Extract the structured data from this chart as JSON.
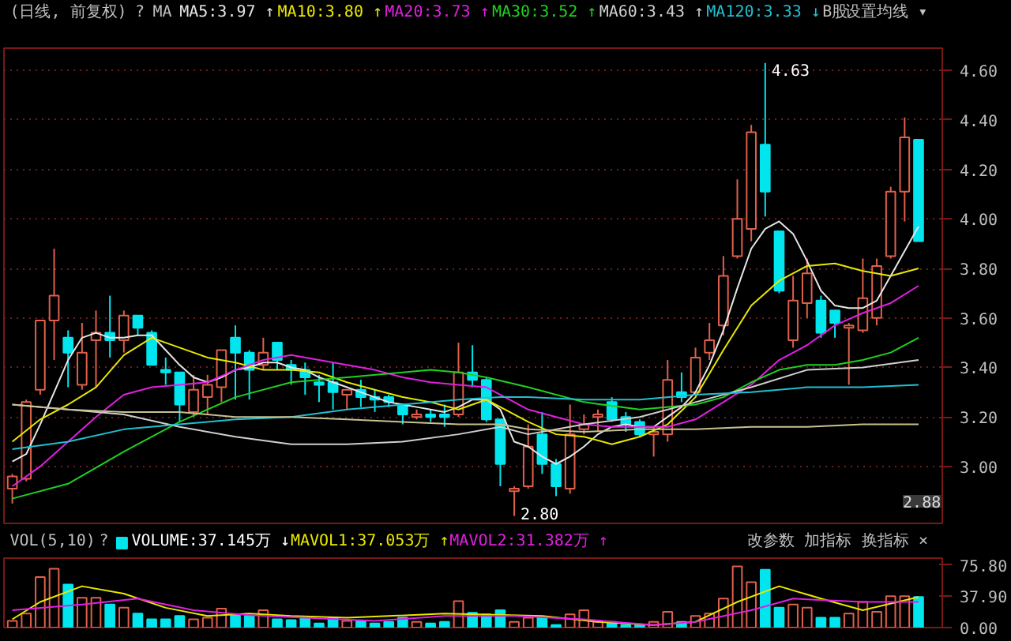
{
  "chart_data": [
    {
      "type": "candlestick",
      "subtitle": "(日线, 前复权)",
      "legend": "top",
      "grid": "y",
      "tick_labels": "y",
      "categories": [
        null,
        null,
        null,
        null,
        null,
        null,
        null,
        null,
        null,
        null,
        null,
        null,
        null,
        null,
        null,
        null,
        null,
        null,
        null,
        null,
        null,
        null,
        null,
        null,
        null,
        null,
        null,
        null,
        null,
        null,
        null,
        null,
        null,
        null,
        null,
        null,
        null,
        null,
        null,
        null,
        null,
        null,
        null,
        null,
        null,
        null,
        null,
        null,
        null,
        null,
        null,
        null,
        null,
        null,
        null,
        null,
        null,
        null,
        null,
        null,
        null,
        null,
        null,
        null,
        null,
        null
      ],
      "ohlc": [
        [
          2.91,
          2.97,
          2.85,
          2.96
        ],
        [
          2.95,
          3.27,
          2.94,
          3.26
        ],
        [
          3.31,
          3.59,
          3.29,
          3.59
        ],
        [
          3.59,
          3.88,
          3.43,
          3.69
        ],
        [
          3.52,
          3.55,
          3.32,
          3.46
        ],
        [
          3.33,
          3.58,
          3.31,
          3.46
        ],
        [
          3.51,
          3.63,
          3.32,
          3.54
        ],
        [
          3.54,
          3.69,
          3.44,
          3.51
        ],
        [
          3.51,
          3.63,
          3.46,
          3.61
        ],
        [
          3.61,
          3.61,
          3.53,
          3.56
        ],
        [
          3.54,
          3.55,
          3.41,
          3.41
        ],
        [
          3.39,
          3.44,
          3.33,
          3.38
        ],
        [
          3.38,
          3.38,
          3.18,
          3.25
        ],
        [
          3.22,
          3.37,
          3.2,
          3.31
        ],
        [
          3.28,
          3.37,
          3.21,
          3.33
        ],
        [
          3.32,
          3.47,
          3.26,
          3.47
        ],
        [
          3.52,
          3.57,
          3.27,
          3.46
        ],
        [
          3.46,
          3.47,
          3.27,
          3.39
        ],
        [
          3.41,
          3.52,
          3.39,
          3.46
        ],
        [
          3.5,
          3.5,
          3.39,
          3.43
        ],
        [
          3.41,
          3.43,
          3.33,
          3.39
        ],
        [
          3.39,
          3.42,
          3.29,
          3.36
        ],
        [
          3.34,
          3.37,
          3.26,
          3.33
        ],
        [
          3.34,
          3.42,
          3.23,
          3.3
        ],
        [
          3.29,
          3.31,
          3.23,
          3.31
        ],
        [
          3.31,
          3.35,
          3.24,
          3.28
        ],
        [
          3.28,
          3.31,
          3.22,
          3.27
        ],
        [
          3.28,
          3.29,
          3.24,
          3.26
        ],
        [
          3.25,
          3.25,
          3.17,
          3.21
        ],
        [
          3.2,
          3.23,
          3.19,
          3.21
        ],
        [
          3.21,
          3.23,
          3.18,
          3.2
        ],
        [
          3.21,
          3.25,
          3.16,
          3.2
        ],
        [
          3.21,
          3.5,
          3.2,
          3.38
        ],
        [
          3.38,
          3.49,
          3.32,
          3.35
        ],
        [
          3.35,
          3.36,
          3.18,
          3.19
        ],
        [
          3.19,
          3.19,
          2.92,
          3.01
        ],
        [
          2.9,
          2.92,
          2.8,
          2.91
        ],
        [
          2.92,
          3.17,
          2.91,
          3.08
        ],
        [
          3.13,
          3.22,
          2.97,
          3.01
        ],
        [
          3.01,
          3.03,
          2.88,
          2.92
        ],
        [
          2.91,
          3.25,
          2.89,
          3.13
        ],
        [
          3.15,
          3.21,
          3.13,
          3.17
        ],
        [
          3.2,
          3.23,
          3.14,
          3.21
        ],
        [
          3.26,
          3.28,
          3.18,
          3.19
        ],
        [
          3.2,
          3.22,
          3.14,
          3.17
        ],
        [
          3.18,
          3.19,
          3.12,
          3.13
        ],
        [
          3.13,
          3.16,
          3.04,
          3.14
        ],
        [
          3.13,
          3.43,
          3.1,
          3.35
        ],
        [
          3.3,
          3.38,
          3.26,
          3.28
        ],
        [
          3.3,
          3.48,
          3.29,
          3.44
        ],
        [
          3.46,
          3.58,
          3.43,
          3.51
        ],
        [
          3.57,
          3.85,
          3.53,
          3.77
        ],
        [
          3.85,
          4.16,
          3.84,
          4.0
        ],
        [
          3.96,
          4.38,
          3.91,
          4.35
        ],
        [
          4.3,
          4.63,
          4.01,
          4.11
        ],
        [
          3.95,
          3.95,
          3.7,
          3.71
        ],
        [
          3.51,
          3.77,
          3.48,
          3.67
        ],
        [
          3.66,
          3.84,
          3.6,
          3.78
        ],
        [
          3.67,
          3.69,
          3.52,
          3.54
        ],
        [
          3.63,
          3.63,
          3.52,
          3.58
        ],
        [
          3.56,
          3.58,
          3.33,
          3.57
        ],
        [
          3.55,
          3.84,
          3.54,
          3.68
        ],
        [
          3.6,
          3.84,
          3.57,
          3.81
        ],
        [
          3.85,
          4.13,
          3.84,
          4.11
        ],
        [
          4.11,
          4.41,
          3.99,
          4.33
        ],
        [
          4.32,
          4.32,
          3.91,
          3.91
        ]
      ],
      "ylim": [
        2.77,
        4.69
      ],
      "yticks": [
        {
          "value": 3.0,
          "label": "3.00"
        },
        {
          "value": 3.2,
          "label": "3.20"
        },
        {
          "value": 3.4,
          "label": "3.40"
        },
        {
          "value": 3.6,
          "label": "3.60"
        },
        {
          "value": 3.8,
          "label": "3.80"
        },
        {
          "value": 4.0,
          "label": "4.00"
        },
        {
          "value": 4.2,
          "label": "4.20"
        },
        {
          "value": 4.4,
          "label": "4.40"
        },
        {
          "value": 4.6,
          "label": "4.60"
        }
      ],
      "series": [
        {
          "type": "line",
          "name": "MA5:3.97 ↑",
          "color": "#e6e6e6",
          "values": [
            3.02,
            3.05,
            3.17,
            3.3,
            3.43,
            3.52,
            3.54,
            3.52,
            3.52,
            3.53,
            3.53,
            3.47,
            3.41,
            3.36,
            3.34,
            3.36,
            3.39,
            3.4,
            3.42,
            3.42,
            3.4,
            3.39,
            3.36,
            3.34,
            3.32,
            3.3,
            3.28,
            3.26,
            3.25,
            3.24,
            3.23,
            3.22,
            3.24,
            3.27,
            3.27,
            3.23,
            3.1,
            3.08,
            3.04,
            3.01,
            3.04,
            3.08,
            3.13,
            3.16,
            3.17,
            3.16,
            3.16,
            3.2,
            3.24,
            3.3,
            3.41,
            3.55,
            3.72,
            3.88,
            3.96,
            3.99,
            3.94,
            3.83,
            3.71,
            3.65,
            3.64,
            3.64,
            3.67,
            3.77,
            3.87,
            3.97
          ]
        },
        {
          "type": "line",
          "name": "MA10:3.80 ↑",
          "color": "#e8e800",
          "values": [
            3.1,
            null,
            3.19,
            null,
            3.25,
            null,
            3.32,
            null,
            3.45,
            null,
            3.52,
            null,
            3.48,
            null,
            3.44,
            null,
            3.42,
            null,
            3.39,
            null,
            3.39,
            null,
            3.38,
            null,
            3.34,
            null,
            3.31,
            null,
            3.28,
            null,
            3.26,
            null,
            3.23,
            null,
            3.27,
            null,
            null,
            3.18,
            null,
            3.13,
            null,
            3.12,
            null,
            3.09,
            null,
            3.12,
            null,
            3.17,
            null,
            3.28,
            null,
            3.47,
            null,
            3.65,
            null,
            3.75,
            null,
            3.81,
            null,
            3.82,
            null,
            3.79,
            null,
            3.77,
            null,
            3.8
          ]
        },
        {
          "type": "line",
          "name": "MA20:3.73 ↑",
          "color": "#e020e0",
          "values": [
            2.92,
            null,
            3.0,
            null,
            3.1,
            null,
            3.2,
            null,
            3.29,
            null,
            3.32,
            null,
            3.33,
            null,
            3.34,
            null,
            3.39,
            null,
            3.43,
            null,
            3.45,
            null,
            3.43,
            null,
            3.41,
            null,
            3.39,
            null,
            3.36,
            null,
            3.34,
            null,
            3.33,
            null,
            3.32,
            null,
            null,
            3.23,
            null,
            3.2,
            null,
            3.17,
            null,
            3.16,
            null,
            3.16,
            null,
            3.16,
            null,
            3.19,
            null,
            3.26,
            null,
            3.33,
            null,
            3.43,
            null,
            3.49,
            null,
            3.57,
            null,
            3.62,
            null,
            3.66,
            null,
            3.73
          ]
        },
        {
          "type": "line",
          "name": "MA30:3.52 ↑",
          "color": "#20d020",
          "values": [
            2.87,
            null,
            null,
            null,
            2.93,
            null,
            null,
            null,
            3.06,
            null,
            null,
            null,
            3.18,
            null,
            null,
            null,
            3.28,
            null,
            null,
            null,
            3.34,
            null,
            null,
            null,
            3.36,
            null,
            null,
            null,
            3.38,
            null,
            3.39,
            null,
            3.38,
            null,
            3.36,
            null,
            null,
            3.32,
            null,
            null,
            null,
            3.26,
            null,
            null,
            null,
            3.23,
            null,
            null,
            null,
            3.25,
            null,
            3.28,
            null,
            3.34,
            null,
            3.39,
            null,
            3.41,
            null,
            3.41,
            null,
            3.43,
            null,
            3.46,
            null,
            3.52
          ]
        },
        {
          "type": "line",
          "name": "MA60:3.43 ↑",
          "color": "#cfcfcf",
          "values": [
            3.25,
            null,
            null,
            null,
            3.23,
            null,
            null,
            null,
            3.21,
            null,
            null,
            null,
            3.16,
            null,
            null,
            null,
            3.12,
            null,
            null,
            null,
            3.09,
            null,
            null,
            null,
            3.09,
            null,
            null,
            null,
            3.1,
            null,
            null,
            null,
            3.13,
            null,
            null,
            3.16,
            null,
            3.13,
            null,
            null,
            null,
            3.17,
            null,
            null,
            null,
            3.2,
            null,
            null,
            null,
            3.26,
            null,
            null,
            null,
            3.32,
            null,
            null,
            null,
            3.39,
            null,
            null,
            null,
            3.4,
            null,
            null,
            null,
            3.43
          ]
        },
        {
          "type": "line",
          "name": "MA120:3.33 ↓",
          "color": "#20c0d0",
          "values": [
            3.07,
            null,
            null,
            null,
            3.1,
            null,
            null,
            null,
            3.15,
            null,
            null,
            null,
            3.17,
            null,
            null,
            null,
            3.19,
            null,
            null,
            null,
            3.2,
            null,
            null,
            null,
            3.23,
            null,
            null,
            null,
            3.25,
            null,
            null,
            null,
            3.27,
            null,
            null,
            3.28,
            null,
            3.28,
            null,
            null,
            null,
            3.27,
            null,
            null,
            null,
            3.27,
            null,
            null,
            null,
            3.29,
            null,
            null,
            null,
            3.3,
            null,
            null,
            null,
            3.32,
            null,
            null,
            null,
            3.32,
            null,
            null,
            null,
            3.33
          ]
        },
        {
          "type": "line",
          "color": "#c8c090",
          "values": [
            3.25,
            null,
            null,
            null,
            3.23,
            null,
            null,
            null,
            3.22,
            null,
            null,
            null,
            3.22,
            null,
            null,
            null,
            3.2,
            null,
            null,
            null,
            3.2,
            null,
            null,
            null,
            3.19,
            null,
            null,
            null,
            3.18,
            null,
            null,
            null,
            3.17,
            null,
            null,
            3.17,
            null,
            3.15,
            null,
            null,
            null,
            3.14,
            null,
            null,
            null,
            3.15,
            null,
            null,
            null,
            3.15,
            null,
            null,
            null,
            3.16,
            null,
            null,
            null,
            3.16,
            null,
            null,
            null,
            3.17,
            null,
            null,
            null,
            3.17
          ]
        }
      ],
      "annotations": [
        "?",
        "MA",
        "B股",
        "设置均线 ▾",
        "2.80",
        "4.63",
        "2.88"
      ]
    },
    {
      "type": "bar",
      "subtitle": "VOL(5,10)",
      "legend": "top",
      "tick_labels": "y",
      "categories": [
        null,
        null,
        null,
        null,
        null,
        null,
        null,
        null,
        null,
        null,
        null,
        null,
        null,
        null,
        null,
        null,
        null,
        null,
        null,
        null,
        null,
        null,
        null,
        null,
        null,
        null,
        null,
        null,
        null,
        null,
        null,
        null,
        null,
        null,
        null,
        null,
        null,
        null,
        null,
        null,
        null,
        null,
        null,
        null,
        null,
        null,
        null,
        null,
        null,
        null,
        null,
        null,
        null,
        null,
        null,
        null,
        null,
        null,
        null,
        null,
        null,
        null,
        null,
        null,
        null,
        null
      ],
      "ylim": [
        0,
        84
      ],
      "yticks": [
        {
          "value": 0,
          "label": "0.00"
        },
        {
          "value": 37.9,
          "label": "37.90"
        },
        {
          "value": 75.8,
          "label": "75.80"
        }
      ],
      "series": [
        {
          "type": "bar",
          "name": "VOLUME:37.145万 ↓",
          "colors": [
            "#e0604a",
            "#e0604a",
            "#e0604a",
            "#e0604a",
            "#00e5ee",
            "#e0604a",
            "#e0604a",
            "#00e5ee",
            "#e0604a",
            "#00e5ee",
            "#00e5ee",
            "#00e5ee",
            "#00e5ee",
            "#e0604a",
            "#e0604a",
            "#e0604a",
            "#00e5ee",
            "#00e5ee",
            "#e0604a",
            "#00e5ee",
            "#00e5ee",
            "#00e5ee",
            "#00e5ee",
            "#00e5ee",
            "#e0604a",
            "#00e5ee",
            "#00e5ee",
            "#00e5ee",
            "#00e5ee",
            "#e0604a",
            "#00e5ee",
            "#00e5ee",
            "#e0604a",
            "#00e5ee",
            "#00e5ee",
            "#00e5ee",
            "#e0604a",
            "#e0604a",
            "#00e5ee",
            "#00e5ee",
            "#e0604a",
            "#e0604a",
            "#e0604a",
            "#00e5ee",
            "#00e5ee",
            "#00e5ee",
            "#e0604a",
            "#e0604a",
            "#00e5ee",
            "#e0604a",
            "#e0604a",
            "#e0604a",
            "#e0604a",
            "#e0604a",
            "#00e5ee",
            "#00e5ee",
            "#e0604a",
            "#e0604a",
            "#00e5ee",
            "#00e5ee",
            "#e0604a",
            "#e0604a",
            "#e0604a",
            "#e0604a",
            "#e0604a",
            "#00e5ee"
          ],
          "values": [
            8,
            17,
            61,
            71,
            52,
            36,
            36,
            28,
            24,
            17,
            10,
            10,
            14,
            10,
            12,
            23,
            15,
            14,
            21,
            10,
            9,
            12,
            5,
            12,
            8,
            8,
            5,
            7,
            12,
            7,
            5,
            7,
            32,
            18,
            16,
            21,
            7,
            12,
            12,
            3,
            16,
            21,
            7,
            7,
            3,
            3,
            7,
            19,
            7,
            14,
            17,
            35,
            74,
            55,
            70,
            24,
            28,
            24,
            12,
            12,
            17,
            31,
            19,
            38,
            38,
            37
          ]
        },
        {
          "type": "line",
          "name": "MAVOL1:37.053万 ↑",
          "color": "#e8e800",
          "values": [
            10,
            null,
            31,
            null,
            null,
            50,
            null,
            null,
            41,
            null,
            null,
            24,
            null,
            null,
            14,
            null,
            null,
            17,
            null,
            null,
            14,
            null,
            null,
            null,
            12,
            null,
            null,
            14,
            null,
            null,
            null,
            17,
            null,
            null,
            null,
            null,
            null,
            null,
            14,
            null,
            null,
            null,
            7,
            null,
            null,
            null,
            3,
            null,
            null,
            7,
            null,
            null,
            31,
            null,
            null,
            50,
            null,
            null,
            35,
            null,
            null,
            21,
            null,
            null,
            null,
            37
          ]
        },
        {
          "type": "line",
          "name": "MAVOL2:31.382万 ↑",
          "color": "#e020e0",
          "values": [
            21,
            null,
            null,
            null,
            null,
            28,
            null,
            null,
            null,
            35,
            null,
            null,
            null,
            21,
            null,
            null,
            null,
            15,
            null,
            null,
            null,
            12,
            null,
            null,
            null,
            null,
            8,
            null,
            null,
            null,
            null,
            14,
            null,
            null,
            null,
            null,
            14,
            null,
            null,
            null,
            null,
            10,
            null,
            null,
            null,
            null,
            3,
            null,
            null,
            7,
            null,
            null,
            null,
            21,
            null,
            null,
            35,
            null,
            null,
            null,
            null,
            31,
            null,
            null,
            null,
            31
          ]
        }
      ],
      "annotations": [
        "?",
        "改参数",
        "加指标",
        "换指标",
        "×"
      ]
    }
  ]
}
